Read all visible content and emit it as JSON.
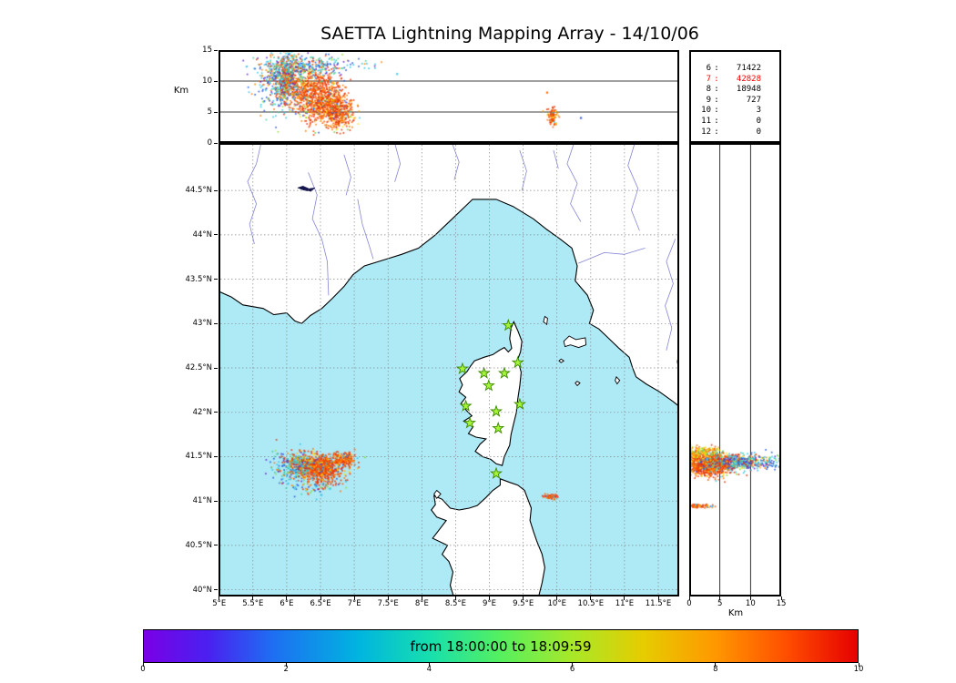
{
  "title": "SAETTA Lightning Mapping Array - 14/10/06",
  "stats": {
    "rows": [
      {
        "k": "6",
        "v": "71422"
      },
      {
        "k": "7",
        "v": "42828",
        "color": "#ff0000"
      },
      {
        "k": "8",
        "v": "18948"
      },
      {
        "k": "9",
        "v": "727"
      },
      {
        "k": "10",
        "v": "3"
      },
      {
        "k": "11",
        "v": "0"
      },
      {
        "k": "12",
        "v": "0"
      }
    ]
  },
  "colors": {
    "sea": "#aee9f6",
    "land": "#ffffff",
    "coast": "#000000",
    "grid": "#888888",
    "river": "#8585d6",
    "star_fill": "#a6f43a",
    "star_stroke": "#3c8a00",
    "lake": "#0a0acc",
    "dark_lake": "#15154d",
    "stats_red": "#ff0000"
  },
  "palettes": {
    "hot": [
      [
        "#e8340c",
        40
      ],
      [
        "#ff5500",
        25
      ],
      [
        "#ff8000",
        15
      ],
      [
        "#ffb000",
        6
      ],
      [
        "#ffdf00",
        4
      ],
      [
        "#6fd63a",
        3
      ],
      [
        "#2fc8e8",
        4
      ],
      [
        "#2a5ae0",
        3
      ]
    ],
    "hotmix": [
      [
        "#e8340c",
        28
      ],
      [
        "#ff7000",
        16
      ],
      [
        "#ffc400",
        8
      ],
      [
        "#8ada3a",
        10
      ],
      [
        "#2fc8e8",
        22
      ],
      [
        "#2a5ae0",
        12
      ],
      [
        "#6a28d8",
        4
      ]
    ],
    "cool": [
      [
        "#2fc8e8",
        30
      ],
      [
        "#2a5ae0",
        22
      ],
      [
        "#6a28d8",
        10
      ],
      [
        "#41d39a",
        12
      ],
      [
        "#9ae03a",
        8
      ],
      [
        "#ff8000",
        10
      ],
      [
        "#e8340c",
        8
      ]
    ],
    "warmmix": [
      [
        "#ffd400",
        30
      ],
      [
        "#ffa000",
        25
      ],
      [
        "#ff6000",
        20
      ],
      [
        "#b0e030",
        15
      ],
      [
        "#50d090",
        10
      ]
    ]
  },
  "chart_data": [
    {
      "id": "alt_lon",
      "type": "scatter",
      "ylabel": "Km",
      "ylim": [
        0,
        15
      ],
      "yticks": [
        "0",
        "5",
        "10",
        "15"
      ],
      "ytick_vals": [
        0,
        5,
        10,
        15
      ],
      "xlim": [
        4.99,
        11.81
      ],
      "grid_alt": [
        5,
        10
      ],
      "clusters": [
        {
          "x": 6.0,
          "y": 10.5,
          "sx": 0.12,
          "sy": 2.0,
          "n": 700,
          "p": "hotmix"
        },
        {
          "x": 6.45,
          "y": 7.5,
          "sx": 0.18,
          "sy": 2.2,
          "n": 900,
          "p": "hot"
        },
        {
          "x": 6.75,
          "y": 5.2,
          "sx": 0.12,
          "sy": 1.3,
          "n": 400,
          "p": "hot"
        },
        {
          "x": 6.3,
          "y": 12.6,
          "sx": 0.38,
          "sy": 0.8,
          "n": 260,
          "p": "cool"
        },
        {
          "x": 5.75,
          "y": 9.0,
          "sx": 0.12,
          "sy": 2.2,
          "n": 130,
          "p": "cool"
        },
        {
          "x": 9.92,
          "y": 4.4,
          "sx": 0.035,
          "sy": 0.8,
          "n": 90,
          "p": "hot"
        }
      ],
      "singles": [
        [
          9.84,
          8.3,
          "#ff5a00"
        ],
        [
          10.34,
          4.2,
          "#2b50dd"
        ],
        [
          7.62,
          11.3,
          "#30c8e8"
        ],
        [
          5.62,
          11.0,
          "#ff8000"
        ]
      ]
    },
    {
      "id": "map",
      "type": "scatter",
      "xlim": [
        4.99,
        11.81
      ],
      "ylim": [
        39.92,
        45.035
      ],
      "lon_ticks": [
        "5°E",
        "5.5°E",
        "6°E",
        "6.5°E",
        "7°E",
        "7.5°E",
        "8°E",
        "8.5°E",
        "9°E",
        "9.5°E",
        "10°E",
        "10.5°E",
        "11°E",
        "11.5°E"
      ],
      "lon_vals": [
        5,
        5.5,
        6,
        6.5,
        7,
        7.5,
        8,
        8.5,
        9,
        9.5,
        10,
        10.5,
        11,
        11.5
      ],
      "lat_ticks": [
        "40°N",
        "40.5°N",
        "41°N",
        "41.5°N",
        "42°N",
        "42.5°N",
        "43°N",
        "43.5°N",
        "44°N",
        "44.5°N"
      ],
      "lat_vals": [
        40,
        40.5,
        41,
        41.5,
        42,
        42.5,
        43,
        43.5,
        44,
        44.5
      ],
      "stations": [
        [
          9.28,
          42.98
        ],
        [
          8.6,
          42.49
        ],
        [
          8.92,
          42.44
        ],
        [
          9.22,
          42.44
        ],
        [
          9.42,
          42.56
        ],
        [
          8.99,
          42.3
        ],
        [
          8.65,
          42.07
        ],
        [
          9.45,
          42.09
        ],
        [
          8.71,
          41.88
        ],
        [
          9.13,
          41.82
        ],
        [
          9.1,
          42.01
        ],
        [
          9.1,
          41.31
        ]
      ],
      "clusters": [
        {
          "x": 6.5,
          "y": 41.38,
          "sx": 0.16,
          "sy": 0.08,
          "n": 750,
          "p": "hot"
        },
        {
          "x": 6.2,
          "y": 41.42,
          "sx": 0.12,
          "sy": 0.07,
          "n": 300,
          "p": "hotmix"
        },
        {
          "x": 6.85,
          "y": 41.48,
          "sx": 0.09,
          "sy": 0.04,
          "n": 180,
          "p": "hot"
        },
        {
          "x": 6.05,
          "y": 41.38,
          "sx": 0.18,
          "sy": 0.1,
          "n": 150,
          "p": "cool"
        },
        {
          "x": 6.45,
          "y": 41.16,
          "sx": 0.2,
          "sy": 0.04,
          "n": 50,
          "p": "hotmix"
        },
        {
          "x": 9.91,
          "y": 41.06,
          "sx": 0.05,
          "sy": 0.012,
          "n": 60,
          "p": "hot"
        }
      ],
      "singles": [
        [
          5.89,
          41.35,
          "#ff6000"
        ],
        [
          6.5,
          41.08,
          "#2fc8e8"
        ]
      ]
    },
    {
      "id": "alt_lat",
      "type": "scatter",
      "xlabel": "Km",
      "xlim": [
        0,
        15
      ],
      "xticks": [
        "0",
        "5",
        "10",
        "15"
      ],
      "xtick_vals": [
        0,
        5,
        10,
        15
      ],
      "grid_alt": [
        5,
        10
      ],
      "clusters": [
        {
          "x": 2.8,
          "y": 41.42,
          "sx": 1.9,
          "sy": 0.065,
          "n": 900,
          "p": "hot"
        },
        {
          "x": 6.0,
          "y": 41.44,
          "sx": 2.2,
          "sy": 0.05,
          "n": 420,
          "p": "hotmix"
        },
        {
          "x": 10.5,
          "y": 41.45,
          "sx": 2.4,
          "sy": 0.04,
          "n": 260,
          "p": "cool"
        },
        {
          "x": 2.2,
          "y": 41.56,
          "sx": 1.6,
          "sy": 0.03,
          "n": 160,
          "p": "warmmix"
        },
        {
          "x": 1.4,
          "y": 40.95,
          "sx": 1.1,
          "sy": 0.012,
          "n": 70,
          "p": "hot"
        }
      ],
      "singles": [
        [
          0.6,
          40.96,
          "#ff5500"
        ]
      ]
    },
    {
      "id": "time_colorbar",
      "type": "colorbar",
      "label": "from 18:00:00 to 18:09:59",
      "range": [
        0,
        10
      ],
      "ticks": [
        "0",
        "2",
        "4",
        "6",
        "8",
        "10"
      ],
      "tick_vals": [
        0,
        2,
        4,
        6,
        8,
        10
      ],
      "stops": [
        [
          0,
          "#7a00e6"
        ],
        [
          0.09,
          "#4a20f0"
        ],
        [
          0.18,
          "#1e6ef2"
        ],
        [
          0.3,
          "#00b4e0"
        ],
        [
          0.4,
          "#16dfae"
        ],
        [
          0.5,
          "#55f05f"
        ],
        [
          0.6,
          "#a8e828"
        ],
        [
          0.7,
          "#e6cc00"
        ],
        [
          0.8,
          "#ff9800"
        ],
        [
          0.9,
          "#ff4e00"
        ],
        [
          1,
          "#e60000"
        ]
      ]
    }
  ],
  "map_geo": {
    "mainland": [
      [
        5.0,
        43.36
      ],
      [
        5.18,
        43.3
      ],
      [
        5.35,
        43.21
      ],
      [
        5.65,
        43.17
      ],
      [
        5.81,
        43.1
      ],
      [
        6.0,
        43.12
      ],
      [
        6.12,
        43.03
      ],
      [
        6.22,
        43.0
      ],
      [
        6.35,
        43.09
      ],
      [
        6.52,
        43.17
      ],
      [
        6.67,
        43.28
      ],
      [
        6.85,
        43.42
      ],
      [
        6.98,
        43.55
      ],
      [
        7.15,
        43.65
      ],
      [
        7.45,
        43.72
      ],
      [
        7.7,
        43.78
      ],
      [
        7.95,
        43.85
      ],
      [
        8.2,
        44.0
      ],
      [
        8.45,
        44.18
      ],
      [
        8.75,
        44.4
      ],
      [
        9.1,
        44.4
      ],
      [
        9.35,
        44.32
      ],
      [
        9.65,
        44.18
      ],
      [
        9.85,
        44.06
      ],
      [
        10.05,
        43.95
      ],
      [
        10.22,
        43.85
      ],
      [
        10.3,
        43.65
      ],
      [
        10.27,
        43.48
      ],
      [
        10.45,
        43.32
      ],
      [
        10.54,
        43.15
      ],
      [
        10.48,
        43.0
      ],
      [
        10.62,
        42.94
      ],
      [
        10.73,
        42.86
      ],
      [
        10.92,
        42.72
      ],
      [
        11.07,
        42.62
      ],
      [
        11.12,
        42.5
      ],
      [
        11.17,
        42.4
      ],
      [
        11.32,
        42.32
      ],
      [
        11.52,
        42.23
      ],
      [
        11.72,
        42.12
      ],
      [
        11.92,
        42.0
      ],
      [
        11.95,
        41.92
      ],
      [
        11.95,
        45.1
      ],
      [
        4.95,
        45.1
      ]
    ],
    "corsica": [
      [
        9.36,
        43.02
      ],
      [
        9.42,
        42.92
      ],
      [
        9.48,
        42.8
      ],
      [
        9.46,
        42.68
      ],
      [
        9.42,
        42.6
      ],
      [
        9.47,
        42.45
      ],
      [
        9.45,
        42.3
      ],
      [
        9.42,
        42.15
      ],
      [
        9.4,
        42.0
      ],
      [
        9.36,
        41.88
      ],
      [
        9.32,
        41.75
      ],
      [
        9.3,
        41.63
      ],
      [
        9.22,
        41.5
      ],
      [
        9.19,
        41.4
      ],
      [
        9.1,
        41.42
      ],
      [
        9.02,
        41.47
      ],
      [
        8.9,
        41.5
      ],
      [
        8.79,
        41.56
      ],
      [
        8.86,
        41.64
      ],
      [
        8.95,
        41.7
      ],
      [
        8.8,
        41.72
      ],
      [
        8.69,
        41.76
      ],
      [
        8.76,
        41.84
      ],
      [
        8.62,
        41.9
      ],
      [
        8.74,
        41.96
      ],
      [
        8.66,
        42.02
      ],
      [
        8.58,
        42.1
      ],
      [
        8.65,
        42.17
      ],
      [
        8.55,
        42.23
      ],
      [
        8.6,
        42.31
      ],
      [
        8.56,
        42.38
      ],
      [
        8.67,
        42.46
      ],
      [
        8.72,
        42.52
      ],
      [
        8.78,
        42.58
      ],
      [
        8.92,
        42.62
      ],
      [
        9.05,
        42.65
      ],
      [
        9.15,
        42.7
      ],
      [
        9.22,
        42.73
      ],
      [
        9.28,
        42.68
      ],
      [
        9.33,
        42.72
      ],
      [
        9.3,
        42.83
      ],
      [
        9.32,
        42.95
      ]
    ],
    "sardinia": [
      [
        9.16,
        41.25
      ],
      [
        9.3,
        41.21
      ],
      [
        9.42,
        41.18
      ],
      [
        9.52,
        41.12
      ],
      [
        9.57,
        41.02
      ],
      [
        9.62,
        40.92
      ],
      [
        9.6,
        40.78
      ],
      [
        9.65,
        40.66
      ],
      [
        9.7,
        40.55
      ],
      [
        9.78,
        40.4
      ],
      [
        9.82,
        40.25
      ],
      [
        9.78,
        40.08
      ],
      [
        9.72,
        39.9
      ],
      [
        8.48,
        39.9
      ],
      [
        8.42,
        40.05
      ],
      [
        8.46,
        40.2
      ],
      [
        8.4,
        40.32
      ],
      [
        8.3,
        40.4
      ],
      [
        8.38,
        40.5
      ],
      [
        8.16,
        40.58
      ],
      [
        8.26,
        40.68
      ],
      [
        8.36,
        40.78
      ],
      [
        8.22,
        40.82
      ],
      [
        8.14,
        40.9
      ],
      [
        8.2,
        40.96
      ],
      [
        8.18,
        41.06
      ],
      [
        8.3,
        41.02
      ],
      [
        8.42,
        40.92
      ],
      [
        8.55,
        40.9
      ],
      [
        8.7,
        40.92
      ],
      [
        8.82,
        40.95
      ],
      [
        8.95,
        41.04
      ],
      [
        9.05,
        41.12
      ],
      [
        9.16,
        41.18
      ]
    ],
    "islands": [
      [
        [
          10.1,
          42.8
        ],
        [
          10.18,
          42.86
        ],
        [
          10.28,
          42.82
        ],
        [
          10.42,
          42.84
        ],
        [
          10.43,
          42.76
        ],
        [
          10.32,
          42.73
        ],
        [
          10.2,
          42.76
        ],
        [
          10.12,
          42.74
        ]
      ],
      [
        [
          9.82,
          43.08
        ],
        [
          9.86,
          43.06
        ],
        [
          9.85,
          42.99
        ],
        [
          9.8,
          43.02
        ]
      ],
      [
        [
          10.06,
          42.6
        ],
        [
          10.1,
          42.58
        ],
        [
          10.06,
          42.56
        ],
        [
          10.03,
          42.58
        ]
      ],
      [
        [
          10.3,
          42.35
        ],
        [
          10.34,
          42.33
        ],
        [
          10.3,
          42.3
        ],
        [
          10.27,
          42.33
        ]
      ],
      [
        [
          10.88,
          42.4
        ],
        [
          10.93,
          42.36
        ],
        [
          10.89,
          42.32
        ],
        [
          10.86,
          42.36
        ]
      ],
      [
        [
          8.22,
          41.12
        ],
        [
          8.28,
          41.08
        ],
        [
          8.22,
          41.03
        ],
        [
          8.18,
          41.08
        ]
      ]
    ],
    "rivers": [
      [
        [
          5.62,
          45.03
        ],
        [
          5.55,
          44.8
        ],
        [
          5.42,
          44.6
        ],
        [
          5.55,
          44.35
        ],
        [
          5.45,
          44.12
        ],
        [
          5.52,
          43.9
        ]
      ],
      [
        [
          6.32,
          44.7
        ],
        [
          6.45,
          44.45
        ],
        [
          6.38,
          44.18
        ],
        [
          6.52,
          43.95
        ],
        [
          6.6,
          43.7
        ],
        [
          6.62,
          43.32
        ]
      ],
      [
        [
          7.05,
          44.4
        ],
        [
          7.12,
          44.12
        ],
        [
          7.22,
          43.88
        ],
        [
          7.28,
          43.73
        ]
      ],
      [
        [
          7.6,
          45.03
        ],
        [
          7.68,
          44.8
        ],
        [
          7.6,
          44.6
        ]
      ],
      [
        [
          8.45,
          45.03
        ],
        [
          8.55,
          44.82
        ],
        [
          8.48,
          44.62
        ]
      ],
      [
        [
          9.45,
          44.95
        ],
        [
          9.55,
          44.72
        ],
        [
          9.48,
          44.5
        ]
      ],
      [
        [
          10.25,
          45.03
        ],
        [
          10.15,
          44.8
        ],
        [
          10.3,
          44.58
        ],
        [
          10.2,
          44.35
        ],
        [
          10.35,
          44.15
        ]
      ],
      [
        [
          11.15,
          45.03
        ],
        [
          11.05,
          44.78
        ],
        [
          11.2,
          44.52
        ],
        [
          11.1,
          44.28
        ],
        [
          11.22,
          44.05
        ]
      ],
      [
        [
          11.3,
          43.85
        ],
        [
          11.0,
          43.78
        ],
        [
          10.7,
          43.8
        ],
        [
          10.45,
          43.72
        ],
        [
          10.32,
          43.68
        ]
      ],
      [
        [
          11.75,
          43.95
        ],
        [
          11.62,
          43.7
        ],
        [
          11.72,
          43.45
        ],
        [
          11.6,
          43.2
        ],
        [
          11.7,
          42.95
        ],
        [
          11.62,
          42.7
        ]
      ],
      [
        [
          9.95,
          44.95
        ],
        [
          10.02,
          44.75
        ]
      ],
      [
        [
          6.85,
          44.9
        ],
        [
          6.95,
          44.65
        ],
        [
          6.88,
          44.45
        ]
      ]
    ],
    "dark_lake": [
      [
        6.16,
        44.53
      ],
      [
        6.24,
        44.55
      ],
      [
        6.33,
        44.52
      ],
      [
        6.42,
        44.53
      ],
      [
        6.36,
        44.49
      ],
      [
        6.26,
        44.5
      ]
    ],
    "round_lake": {
      "lon": 11.87,
      "lat": 42.57,
      "r": 7
    }
  }
}
